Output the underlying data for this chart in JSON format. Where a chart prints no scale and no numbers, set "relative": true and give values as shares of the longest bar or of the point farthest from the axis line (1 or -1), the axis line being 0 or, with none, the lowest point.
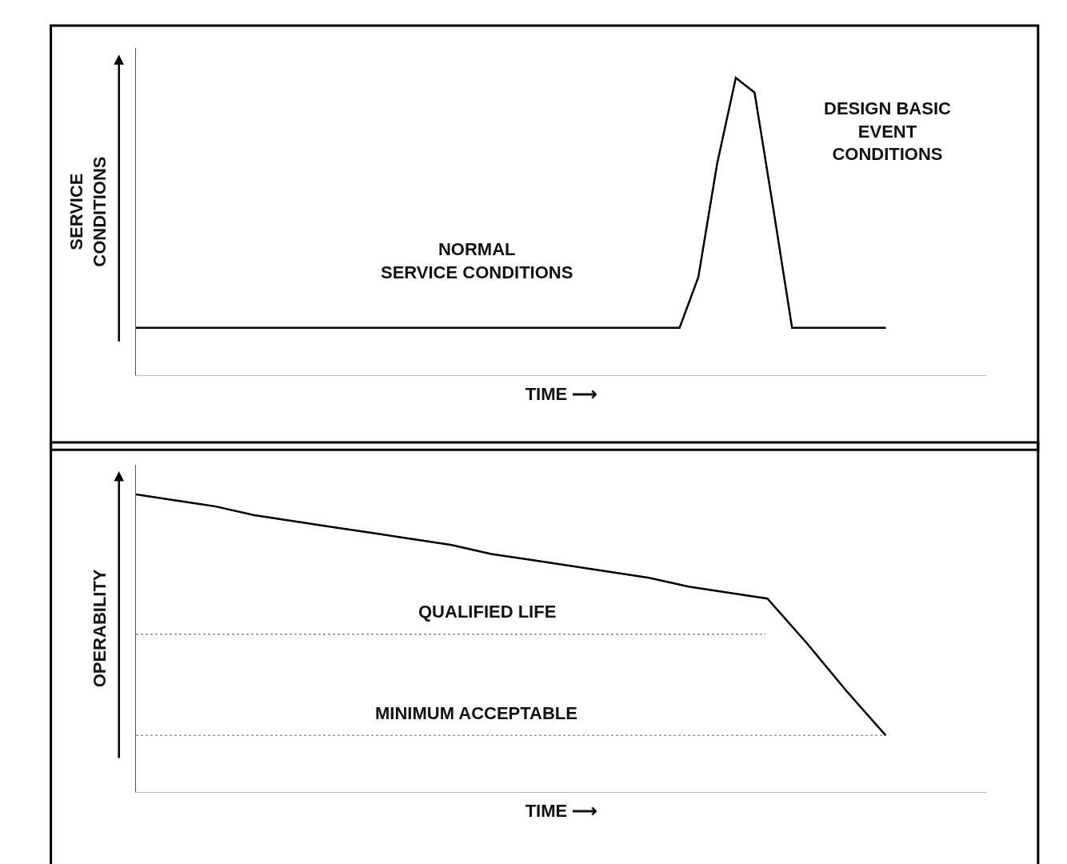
{
  "chart_data": [
    {
      "type": "line",
      "relative": true,
      "xlabel": "TIME ⟶",
      "ylabel": "SERVICE\nCONDITIONS",
      "tick_labels": false,
      "line_style": "solid",
      "categories": [
        null,
        null,
        null,
        null,
        null,
        null,
        null,
        null,
        null,
        null,
        null,
        null,
        null,
        null,
        null,
        null,
        null,
        null,
        null,
        null,
        null,
        null,
        null,
        null,
        null,
        null,
        null,
        null,
        null,
        null,
        null,
        null,
        null,
        null,
        null,
        null,
        null,
        null,
        null,
        null,
        null
      ],
      "series": [
        {
          "color": "#000000",
          "values": [
            0.16,
            0.16,
            0.16,
            0.16,
            0.16,
            0.16,
            0.16,
            0.16,
            0.16,
            0.16,
            0.16,
            0.16,
            0.16,
            0.16,
            0.16,
            0.16,
            0.16,
            0.16,
            0.16,
            0.16,
            0.16,
            0.16,
            0.16,
            0.16,
            0.16,
            0.16,
            0.16,
            0.16,
            0.16,
            0.16,
            0.33,
            0.71,
            1,
            0.95,
            0.56,
            0.16,
            0.16,
            0.16,
            0.16,
            0.16,
            0.16
          ]
        }
      ],
      "annotations": [
        "NORMAL\nSERVICE CONDITIONS",
        "DESIGN BASIC\nEVENT\nCONDITIONS"
      ]
    },
    {
      "type": "line",
      "relative": true,
      "xlabel": "TIME ⟶",
      "ylabel": "OPERABILITY",
      "tick_labels": false,
      "line_style": "solid",
      "categories": [
        null,
        null,
        null,
        null,
        null,
        null,
        null,
        null,
        null,
        null,
        null,
        null,
        null,
        null,
        null,
        null,
        null,
        null,
        null,
        null
      ],
      "series": [
        {
          "color": "#000000",
          "values": [
            1,
            0.98,
            0.96,
            0.93,
            0.91,
            0.89,
            0.87,
            0.85,
            0.83,
            0.8,
            0.78,
            0.76,
            0.74,
            0.72,
            0.69,
            0.67,
            0.65,
            0.5,
            0.34,
            0.19
          ]
        }
      ],
      "ref_lines": [
        {
          "axis": "y",
          "value": 0.53,
          "label": "QUALIFIED LIFE",
          "color": "#888888",
          "line_style": "dotted"
        },
        {
          "axis": "y",
          "value": 0.19,
          "label": "MINIMUM ACCEPTABLE",
          "color": "#999999",
          "line_style": "dotted"
        }
      ]
    }
  ]
}
